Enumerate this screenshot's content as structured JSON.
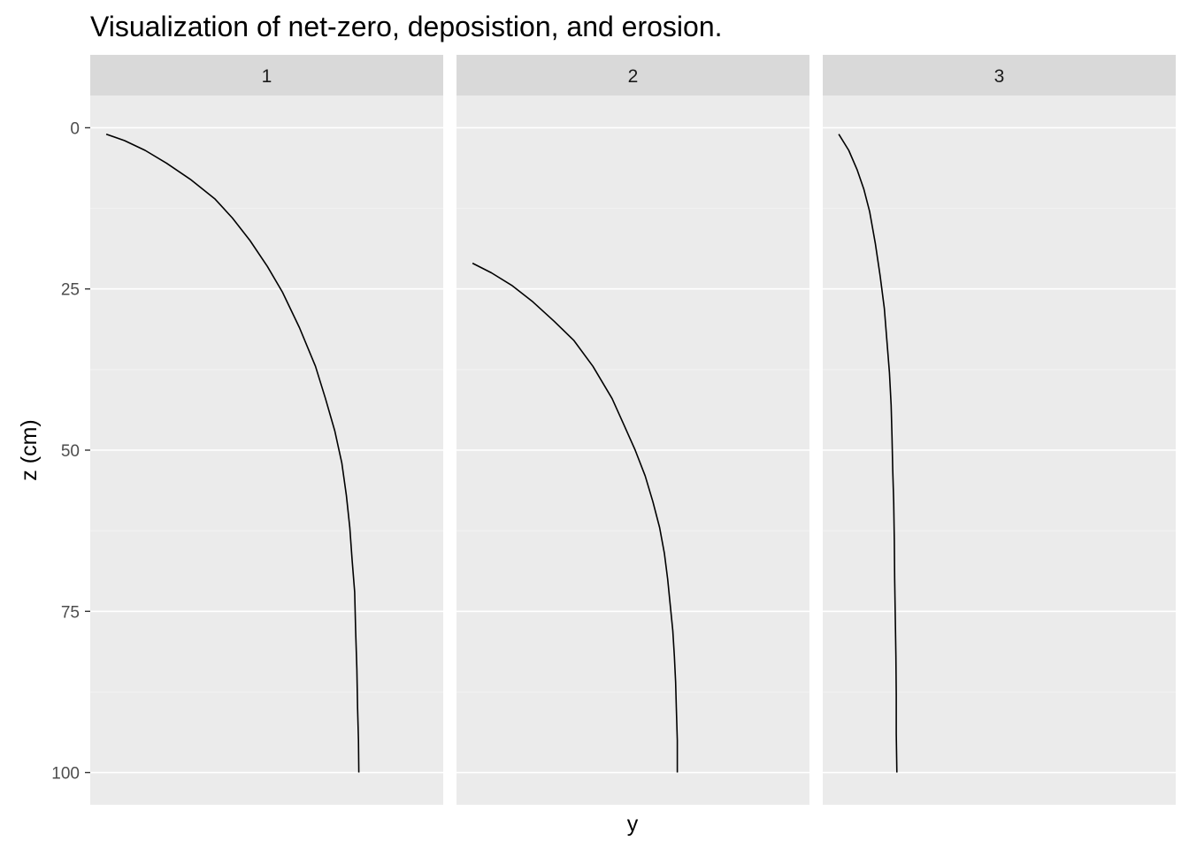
{
  "chart_data": {
    "type": "line",
    "title": "Visualization of net-zero, deposistion, and erosion.",
    "xlabel": "y",
    "ylabel": "z (cm)",
    "y_reversed": true,
    "ylim": [
      -5,
      105
    ],
    "x_ticks_shown": false,
    "yticks": [
      0,
      25,
      50,
      75,
      100
    ],
    "ytick_labels": [
      "0",
      "25",
      "50",
      "75",
      "100"
    ],
    "panel_background": "#ebebeb",
    "strip_background": "#d9d9d9",
    "line_color": "#000000",
    "panels": [
      {
        "label": "1",
        "xlim": [
          -0.05,
          1.05
        ],
        "points": [
          [
            0.0,
            1
          ],
          [
            0.057,
            2
          ],
          [
            0.121,
            3.5
          ],
          [
            0.188,
            5.5
          ],
          [
            0.262,
            8
          ],
          [
            0.338,
            11
          ],
          [
            0.393,
            14
          ],
          [
            0.448,
            17.5
          ],
          [
            0.502,
            21.5
          ],
          [
            0.549,
            25.5
          ],
          [
            0.602,
            31
          ],
          [
            0.652,
            37
          ],
          [
            0.683,
            42
          ],
          [
            0.712,
            47
          ],
          [
            0.734,
            52
          ],
          [
            0.748,
            57
          ],
          [
            0.759,
            62
          ],
          [
            0.766,
            67
          ],
          [
            0.774,
            72
          ],
          [
            0.777,
            78
          ],
          [
            0.781,
            84
          ],
          [
            0.783,
            90
          ],
          [
            0.786,
            95
          ],
          [
            0.787,
            100
          ]
        ]
      },
      {
        "label": "2",
        "xlim": [
          -0.05,
          1.05
        ],
        "points": [
          [
            0.0,
            21
          ],
          [
            0.059,
            22.5
          ],
          [
            0.124,
            24.5
          ],
          [
            0.188,
            27
          ],
          [
            0.254,
            30
          ],
          [
            0.316,
            33
          ],
          [
            0.375,
            37
          ],
          [
            0.435,
            42
          ],
          [
            0.471,
            46
          ],
          [
            0.507,
            50
          ],
          [
            0.538,
            54
          ],
          [
            0.562,
            58
          ],
          [
            0.583,
            62
          ],
          [
            0.598,
            66
          ],
          [
            0.608,
            70
          ],
          [
            0.616,
            74
          ],
          [
            0.624,
            78
          ],
          [
            0.629,
            82
          ],
          [
            0.633,
            86
          ],
          [
            0.635,
            90
          ],
          [
            0.638,
            95
          ],
          [
            0.638,
            100
          ]
        ]
      },
      {
        "label": "3",
        "xlim": [
          -0.05,
          1.05
        ],
        "points": [
          [
            0.0,
            1
          ],
          [
            0.031,
            3.5
          ],
          [
            0.057,
            6.5
          ],
          [
            0.078,
            9.5
          ],
          [
            0.096,
            13
          ],
          [
            0.114,
            18
          ],
          [
            0.129,
            23
          ],
          [
            0.142,
            28
          ],
          [
            0.15,
            33
          ],
          [
            0.158,
            38
          ],
          [
            0.163,
            43
          ],
          [
            0.166,
            48
          ],
          [
            0.168,
            53
          ],
          [
            0.171,
            58
          ],
          [
            0.173,
            64
          ],
          [
            0.174,
            70
          ],
          [
            0.176,
            76
          ],
          [
            0.178,
            82
          ],
          [
            0.179,
            88
          ],
          [
            0.179,
            94
          ],
          [
            0.181,
            100
          ]
        ]
      }
    ]
  }
}
